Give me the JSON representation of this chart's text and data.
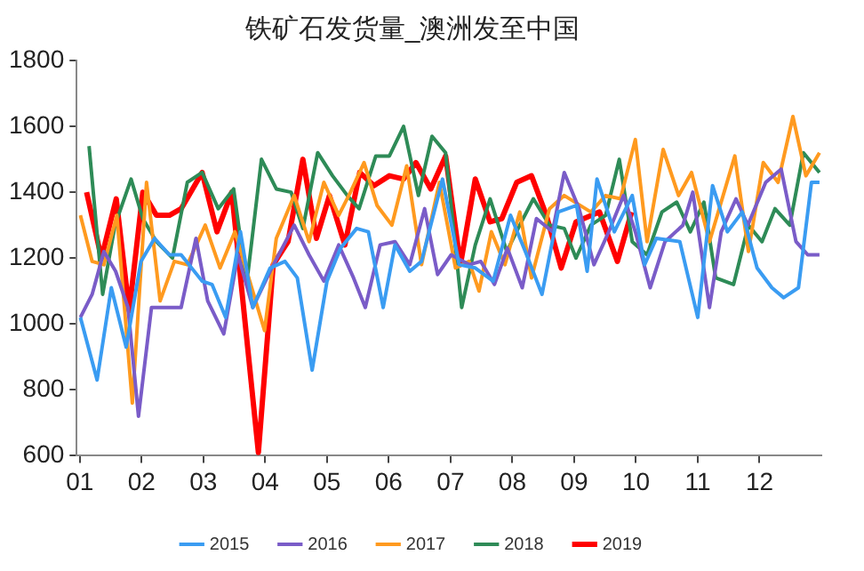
{
  "chart_data": {
    "type": "line",
    "title": "铁矿石发货量_澳洲发至中国",
    "xlim": [
      0.95,
      13
    ],
    "xticks": [
      {
        "value": 1,
        "label": "01"
      },
      {
        "value": 2,
        "label": "02"
      },
      {
        "value": 3,
        "label": "03"
      },
      {
        "value": 4,
        "label": "04"
      },
      {
        "value": 5,
        "label": "05"
      },
      {
        "value": 6,
        "label": "06"
      },
      {
        "value": 7,
        "label": "07"
      },
      {
        "value": 8,
        "label": "08"
      },
      {
        "value": 9,
        "label": "09"
      },
      {
        "value": 10,
        "label": "10"
      },
      {
        "value": 11,
        "label": "11"
      },
      {
        "value": 12,
        "label": "12"
      }
    ],
    "ylim": [
      600,
      1800
    ],
    "yticks": [
      600,
      800,
      1000,
      1200,
      1400,
      1600,
      1800
    ],
    "grid": false,
    "legend": "bottom",
    "marker": "none",
    "line_style": "solid",
    "series": [
      {
        "name": "2015",
        "color": "#3a9cf2",
        "x": [
          1.01,
          1.28,
          1.51,
          1.75,
          1.99,
          2.21,
          2.45,
          2.64,
          2.98,
          3.14,
          3.36,
          3.6,
          3.8,
          4.08,
          4.32,
          4.52,
          4.76,
          5.0,
          5.22,
          5.48,
          5.67,
          5.91,
          6.1,
          6.34,
          6.53,
          6.87,
          7.14,
          7.4,
          7.69,
          7.97,
          8.21,
          8.48,
          8.74,
          9.04,
          9.21,
          9.37,
          9.65,
          9.94,
          10.14,
          10.33,
          10.71,
          11.0,
          11.24,
          11.48,
          11.72,
          11.96,
          12.2,
          12.39,
          12.63,
          12.84,
          12.97
        ],
        "values": [
          1020,
          830,
          1110,
          930,
          1190,
          1260,
          1210,
          1210,
          1130,
          1120,
          1020,
          1280,
          1050,
          1170,
          1190,
          1140,
          860,
          1130,
          1230,
          1290,
          1280,
          1050,
          1240,
          1160,
          1190,
          1440,
          1180,
          1170,
          1130,
          1330,
          1220,
          1090,
          1340,
          1360,
          1160,
          1440,
          1280,
          1390,
          1180,
          1260,
          1250,
          1020,
          1420,
          1280,
          1340,
          1170,
          1110,
          1080,
          1110,
          1430,
          1430
        ]
      },
      {
        "name": "2016",
        "color": "#7a5cc8",
        "x": [
          1.01,
          1.2,
          1.39,
          1.58,
          1.78,
          1.95,
          2.16,
          2.4,
          2.64,
          2.88,
          3.07,
          3.33,
          3.56,
          3.8,
          4.08,
          4.47,
          4.71,
          4.95,
          5.19,
          5.43,
          5.62,
          5.86,
          6.1,
          6.34,
          6.58,
          6.79,
          7.01,
          7.3,
          7.49,
          7.71,
          7.92,
          8.16,
          8.39,
          8.65,
          8.84,
          9.08,
          9.32,
          9.56,
          9.8,
          9.99,
          10.23,
          10.47,
          10.76,
          10.92,
          11.19,
          11.38,
          11.62,
          11.81,
          12.1,
          12.35,
          12.59,
          12.78,
          12.97
        ],
        "values": [
          1020,
          1090,
          1220,
          1160,
          1050,
          720,
          1050,
          1050,
          1050,
          1260,
          1070,
          970,
          1210,
          1050,
          1160,
          1300,
          1210,
          1130,
          1240,
          1140,
          1050,
          1240,
          1250,
          1180,
          1350,
          1150,
          1210,
          1180,
          1190,
          1120,
          1230,
          1110,
          1320,
          1280,
          1460,
          1350,
          1180,
          1280,
          1390,
          1280,
          1110,
          1250,
          1300,
          1400,
          1050,
          1280,
          1380,
          1300,
          1430,
          1470,
          1250,
          1210,
          1210
        ]
      },
      {
        "name": "2017",
        "color": "#ff9a1f",
        "x": [
          1.01,
          1.2,
          1.39,
          1.6,
          1.85,
          2.08,
          2.3,
          2.53,
          2.74,
          3.03,
          3.27,
          3.51,
          3.99,
          4.18,
          4.47,
          4.71,
          4.95,
          5.19,
          5.38,
          5.6,
          5.81,
          6.05,
          6.29,
          6.53,
          6.82,
          7.08,
          7.3,
          7.46,
          7.66,
          7.88,
          8.12,
          8.31,
          8.6,
          8.84,
          9.27,
          9.51,
          9.75,
          9.99,
          10.18,
          10.44,
          10.69,
          10.9,
          11.19,
          11.6,
          11.82,
          12.06,
          12.3,
          12.54,
          12.75,
          12.97
        ],
        "values": [
          1330,
          1190,
          1180,
          1330,
          760,
          1430,
          1070,
          1190,
          1180,
          1300,
          1170,
          1280,
          980,
          1260,
          1390,
          1250,
          1430,
          1330,
          1400,
          1490,
          1360,
          1300,
          1480,
          1180,
          1430,
          1170,
          1190,
          1100,
          1280,
          1180,
          1340,
          1140,
          1350,
          1390,
          1340,
          1390,
          1380,
          1560,
          1250,
          1530,
          1390,
          1460,
          1250,
          1510,
          1220,
          1490,
          1430,
          1630,
          1450,
          1520
        ]
      },
      {
        "name": "2018",
        "color": "#2e8b57",
        "x": [
          1.15,
          1.37,
          1.57,
          1.83,
          2.02,
          2.24,
          2.5,
          2.74,
          2.98,
          3.24,
          3.49,
          3.7,
          3.94,
          4.18,
          4.42,
          4.61,
          4.85,
          5.09,
          5.33,
          5.52,
          5.79,
          6.01,
          6.24,
          6.48,
          6.7,
          6.92,
          7.18,
          7.4,
          7.64,
          7.91,
          8.12,
          8.34,
          8.6,
          8.84,
          9.03,
          9.27,
          9.51,
          9.73,
          9.94,
          10.18,
          10.42,
          10.66,
          10.88,
          11.1,
          11.29,
          11.58,
          11.82,
          12.04,
          12.25,
          12.49,
          12.71,
          12.97
        ],
        "values": [
          1540,
          1090,
          1300,
          1440,
          1320,
          1250,
          1200,
          1430,
          1460,
          1350,
          1410,
          1120,
          1500,
          1410,
          1400,
          1290,
          1520,
          1450,
          1390,
          1350,
          1510,
          1510,
          1600,
          1390,
          1570,
          1520,
          1050,
          1240,
          1380,
          1220,
          1300,
          1380,
          1300,
          1290,
          1200,
          1300,
          1330,
          1500,
          1250,
          1210,
          1340,
          1370,
          1280,
          1370,
          1140,
          1120,
          1300,
          1250,
          1350,
          1300,
          1520,
          1460
        ]
      },
      {
        "name": "2019",
        "color": "#ff0000",
        "x": [
          1.11,
          1.35,
          1.59,
          1.8,
          2.02,
          2.24,
          2.45,
          2.64,
          2.98,
          3.22,
          3.46,
          3.89,
          4.13,
          4.37,
          4.61,
          4.83,
          5.04,
          5.29,
          5.53,
          5.76,
          6.01,
          6.24,
          6.44,
          6.68,
          6.92,
          7.16,
          7.4,
          7.64,
          7.83,
          8.07,
          8.31,
          8.55,
          8.79,
          9.03,
          9.41,
          9.7,
          9.93
        ],
        "values": [
          1400,
          1200,
          1380,
          1040,
          1400,
          1330,
          1330,
          1350,
          1460,
          1280,
          1400,
          610,
          1180,
          1250,
          1500,
          1260,
          1390,
          1240,
          1460,
          1420,
          1450,
          1440,
          1490,
          1410,
          1510,
          1180,
          1440,
          1310,
          1320,
          1430,
          1450,
          1330,
          1170,
          1310,
          1340,
          1190,
          1340
        ]
      }
    ]
  }
}
